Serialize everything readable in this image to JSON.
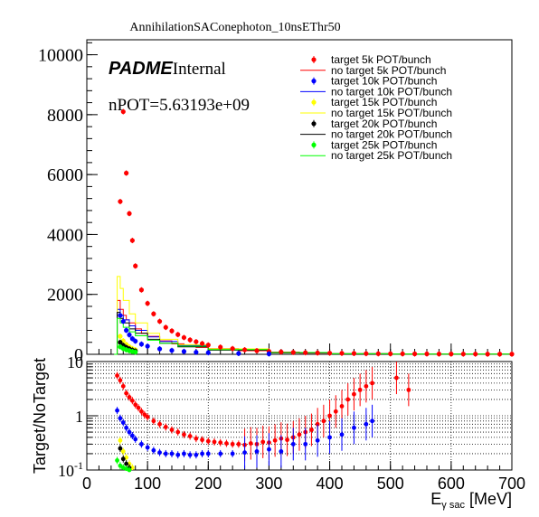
{
  "chart_data": {
    "type": "scatter",
    "title": "AnnihilationSAConephoton_10nsEThr50",
    "label_experiment": "PADME",
    "label_status": "Internal",
    "label_pot": "nPOT=5.63193e+09",
    "xlabel_main": "E",
    "xlabel_sub": "γ sac",
    "xlabel_unit": " [MeV]",
    "ylabel_ratio": "Target/NoTarget",
    "top": {
      "xlim": [
        0,
        700
      ],
      "ylim": [
        0,
        10500
      ],
      "xticks": [
        "0",
        "100",
        "200",
        "300",
        "400",
        "500",
        "600",
        "700"
      ],
      "yticks": [
        "0",
        "2000",
        "4000",
        "6000",
        "8000",
        "10000"
      ],
      "ytick_values": [
        0,
        2000,
        4000,
        6000,
        8000,
        10000
      ]
    },
    "bottom": {
      "xlim": [
        0,
        700
      ],
      "ylim": [
        0.1,
        10
      ],
      "log_y": true,
      "grid": true,
      "yticks": [
        "10",
        "1",
        "10^-1"
      ],
      "ytick_values": [
        10,
        1,
        0.1
      ]
    },
    "legend": {
      "placement": "top-right",
      "entries": [
        {
          "label": "target 5k POT/bunch",
          "kind": "marker",
          "color": "#ff0000"
        },
        {
          "label": "no target 5k POT/bunch",
          "kind": "line",
          "color": "#ff0000"
        },
        {
          "label": "target 10k POT/bunch",
          "kind": "marker",
          "color": "#0000ff"
        },
        {
          "label": "no target 10k POT/bunch",
          "kind": "line",
          "color": "#0000ff"
        },
        {
          "label": "target 15k POT/bunch",
          "kind": "marker",
          "color": "#ffff00"
        },
        {
          "label": "no target 15k POT/bunch",
          "kind": "line",
          "color": "#ffff00"
        },
        {
          "label": "target 20k POT/bunch",
          "kind": "marker",
          "color": "#000000"
        },
        {
          "label": "no target 20k POT/bunch",
          "kind": "line",
          "color": "#000000"
        },
        {
          "label": "target 25k POT/bunch",
          "kind": "marker",
          "color": "#00ff00"
        },
        {
          "label": "no target 25k POT/bunch",
          "kind": "line",
          "color": "#00ff00"
        }
      ]
    },
    "series": [
      {
        "color": "#ff0000",
        "target_x": [
          55,
          60,
          65,
          70,
          75,
          80,
          90,
          100,
          110,
          120,
          130,
          140,
          150,
          160,
          170,
          180,
          190,
          200,
          220,
          240,
          260,
          280,
          300,
          320,
          340,
          360,
          380,
          400,
          420,
          440,
          460,
          480,
          500,
          520,
          540,
          560,
          580,
          600,
          620,
          640,
          660,
          680,
          700
        ],
        "target_y": [
          5100,
          8100,
          6050,
          4700,
          3800,
          2950,
          2150,
          1700,
          1350,
          1100,
          900,
          780,
          660,
          560,
          480,
          420,
          360,
          310,
          240,
          190,
          150,
          120,
          100,
          80,
          65,
          55,
          45,
          40,
          35,
          30,
          25,
          20,
          18,
          16,
          15,
          14,
          12,
          11,
          10,
          9,
          8,
          8,
          7
        ],
        "nontarget_x": [
          45,
          50,
          55,
          60,
          65,
          70,
          80,
          90,
          100,
          120,
          140,
          160,
          180,
          200,
          250,
          300,
          350,
          400,
          500,
          600,
          700
        ],
        "nontarget_y": [
          0,
          1800,
          1500,
          1300,
          1150,
          1050,
          850,
          700,
          600,
          450,
          350,
          280,
          230,
          190,
          120,
          70,
          40,
          20,
          8,
          4,
          0
        ],
        "ratio_x": [
          50,
          55,
          60,
          65,
          70,
          75,
          80,
          85,
          90,
          95,
          100,
          110,
          120,
          130,
          140,
          150,
          160,
          170,
          180,
          190,
          200,
          210,
          220,
          230,
          240,
          250,
          260,
          270,
          280,
          290,
          300,
          310,
          320,
          330,
          340,
          350,
          360,
          370,
          380,
          390,
          400,
          410,
          420,
          430,
          440,
          450,
          460,
          470,
          510,
          530
        ],
        "ratio_y": [
          5.5,
          4.5,
          3.5,
          2.6,
          2.2,
          1.9,
          1.6,
          1.4,
          1.2,
          1.05,
          0.95,
          0.8,
          0.7,
          0.62,
          0.55,
          0.5,
          0.45,
          0.42,
          0.38,
          0.36,
          0.34,
          0.33,
          0.32,
          0.31,
          0.3,
          0.3,
          0.29,
          0.31,
          0.3,
          0.33,
          0.32,
          0.35,
          0.38,
          0.36,
          0.4,
          0.45,
          0.5,
          0.55,
          0.7,
          0.8,
          1.0,
          1.2,
          1.5,
          2.0,
          2.5,
          3.0,
          3.5,
          4.0,
          5.0,
          3.0
        ]
      },
      {
        "color": "#0000ff",
        "target_x": [
          55,
          60,
          65,
          70,
          75,
          80,
          90,
          100,
          120,
          140,
          160,
          180,
          200,
          250,
          300
        ],
        "target_y": [
          1300,
          1100,
          800,
          650,
          520,
          440,
          340,
          270,
          180,
          130,
          95,
          70,
          55,
          30,
          15
        ],
        "nontarget_x": [
          45,
          50,
          55,
          60,
          70,
          80,
          100,
          120,
          150,
          200,
          300,
          400,
          500,
          700
        ],
        "nontarget_y": [
          0,
          1500,
          1300,
          1150,
          950,
          800,
          580,
          430,
          300,
          170,
          60,
          20,
          6,
          0
        ],
        "ratio_x": [
          50,
          55,
          60,
          65,
          70,
          75,
          80,
          90,
          100,
          110,
          120,
          130,
          140,
          150,
          160,
          170,
          180,
          190,
          200,
          220,
          240,
          260,
          280,
          300,
          320,
          340,
          360,
          380,
          400,
          420,
          440,
          460,
          470
        ],
        "ratio_y": [
          1.25,
          0.9,
          0.75,
          0.6,
          0.5,
          0.43,
          0.37,
          0.3,
          0.26,
          0.23,
          0.21,
          0.2,
          0.2,
          0.19,
          0.2,
          0.19,
          0.19,
          0.2,
          0.2,
          0.2,
          0.2,
          0.21,
          0.22,
          0.24,
          0.22,
          0.3,
          0.3,
          0.35,
          0.4,
          0.45,
          0.6,
          0.7,
          0.8
        ]
      },
      {
        "color": "#ffff00",
        "target_x": [
          55,
          60,
          65,
          70,
          75,
          80
        ],
        "target_y": [
          600,
          450,
          330,
          250,
          190,
          150
        ],
        "nontarget_x": [
          45,
          50,
          55,
          60,
          70,
          80,
          100,
          120,
          150,
          200,
          300,
          400,
          500,
          700
        ],
        "nontarget_y": [
          0,
          2600,
          2200,
          1800,
          1350,
          1050,
          700,
          500,
          320,
          180,
          60,
          20,
          6,
          0
        ],
        "ratio_x": [
          55,
          60,
          65,
          70,
          75
        ],
        "ratio_y": [
          0.35,
          0.22,
          0.17,
          0.13,
          0.11
        ]
      },
      {
        "color": "#000000",
        "target_x": [
          55,
          60,
          65,
          70,
          75,
          80
        ],
        "target_y": [
          400,
          300,
          230,
          180,
          140,
          110
        ],
        "nontarget_x": [
          45,
          50,
          55,
          60,
          70,
          80,
          100,
          120,
          150,
          200,
          300,
          400,
          500,
          700
        ],
        "nontarget_y": [
          0,
          1400,
          1200,
          1050,
          850,
          700,
          500,
          370,
          250,
          140,
          50,
          18,
          5,
          0
        ],
        "ratio_x": [
          55,
          60,
          65,
          70
        ],
        "ratio_y": [
          0.25,
          0.16,
          0.13,
          0.11
        ]
      },
      {
        "color": "#00ff00",
        "target_x": [
          55,
          60,
          65,
          70,
          75,
          80
        ],
        "target_y": [
          250,
          190,
          150,
          120,
          95,
          75
        ],
        "nontarget_x": [
          45,
          50,
          55,
          60,
          70,
          80,
          100,
          120,
          150,
          200,
          300,
          400,
          500,
          700
        ],
        "nontarget_y": [
          0,
          1200,
          1050,
          900,
          750,
          620,
          470,
          370,
          270,
          160,
          60,
          20,
          6,
          0
        ],
        "ratio_x": [
          50,
          55,
          60,
          65,
          70
        ],
        "ratio_y": [
          0.15,
          0.12,
          0.11,
          0.105,
          0.1
        ]
      }
    ]
  }
}
